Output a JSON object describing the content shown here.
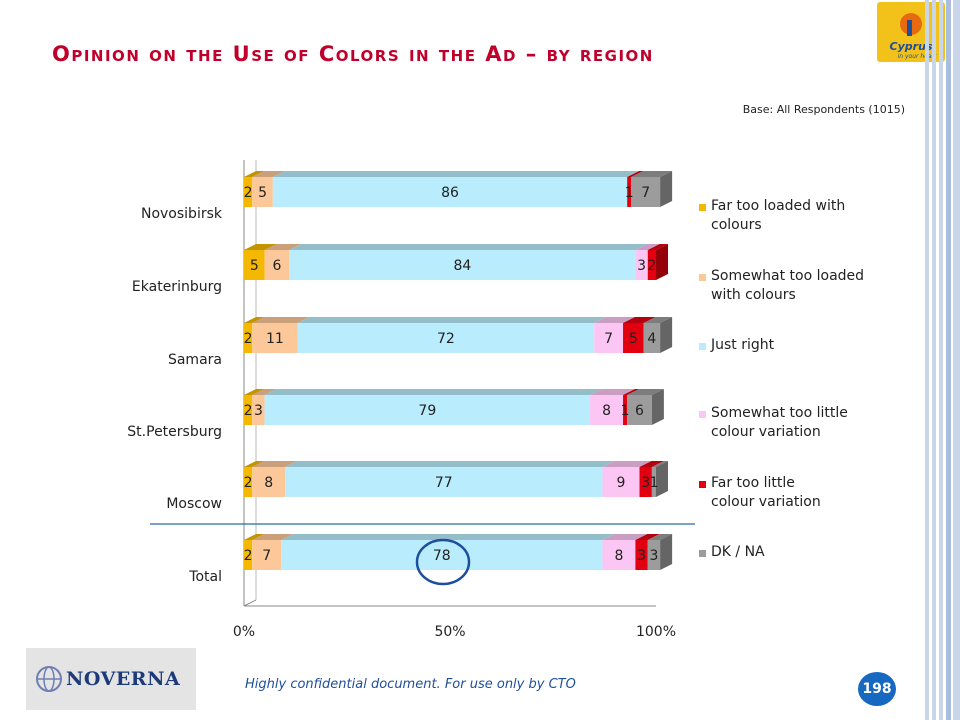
{
  "slide": {
    "title": "Opinion on the Use of Colors in the Ad – by region",
    "base_note": "Base: All Respondents (1015)",
    "footer": "Highly confidential document. For use only by CTO",
    "page_number": "198",
    "brand": "NOVERNA",
    "logo_text": "Cyprus in your heart"
  },
  "chart_data": {
    "type": "bar",
    "orientation": "horizontal",
    "stacked": true,
    "percent": true,
    "categories": [
      "Novosibirsk",
      "Ekaterinburg",
      "Samara",
      "St.Petersburg",
      "Moscow",
      "Total"
    ],
    "series": [
      {
        "name": "Far too loaded with colours",
        "color": "#f5b800",
        "values": [
          2,
          5,
          2,
          2,
          2,
          2
        ]
      },
      {
        "name": "Somewhat too loaded with colours",
        "color": "#fcc89a",
        "values": [
          5,
          6,
          11,
          3,
          8,
          7
        ]
      },
      {
        "name": "Just right",
        "color": "#b9ecfc",
        "values": [
          86,
          84,
          72,
          79,
          77,
          78
        ]
      },
      {
        "name": "Somewhat too little colour variation",
        "color": "#fcc6f4",
        "values": [
          0,
          3,
          7,
          8,
          9,
          8
        ]
      },
      {
        "name": "Far too little colour variation",
        "color": "#e20010",
        "values": [
          1,
          2,
          5,
          1,
          3,
          3
        ]
      },
      {
        "name": "DK / NA",
        "color": "#9c9c9c",
        "values": [
          7,
          0,
          4,
          6,
          1,
          3
        ]
      }
    ],
    "labels_shown": [
      [
        "2",
        "5",
        "86",
        "",
        "1",
        "7"
      ],
      [
        "5",
        "6",
        "84",
        "3",
        "2",
        ""
      ],
      [
        "2",
        "11",
        "72",
        "7",
        "5",
        "4"
      ],
      [
        "2",
        "3",
        "79",
        "8",
        "1",
        "6"
      ],
      [
        "2",
        "8",
        "77",
        "9",
        "3",
        "1"
      ],
      [
        "2",
        "7",
        "78",
        "8",
        "3",
        "3"
      ]
    ],
    "xticks": [
      "0%",
      "50%",
      "100%"
    ],
    "xlim": [
      0,
      100
    ],
    "legend_position": "right",
    "highlight": "Total – Just right (78)"
  }
}
